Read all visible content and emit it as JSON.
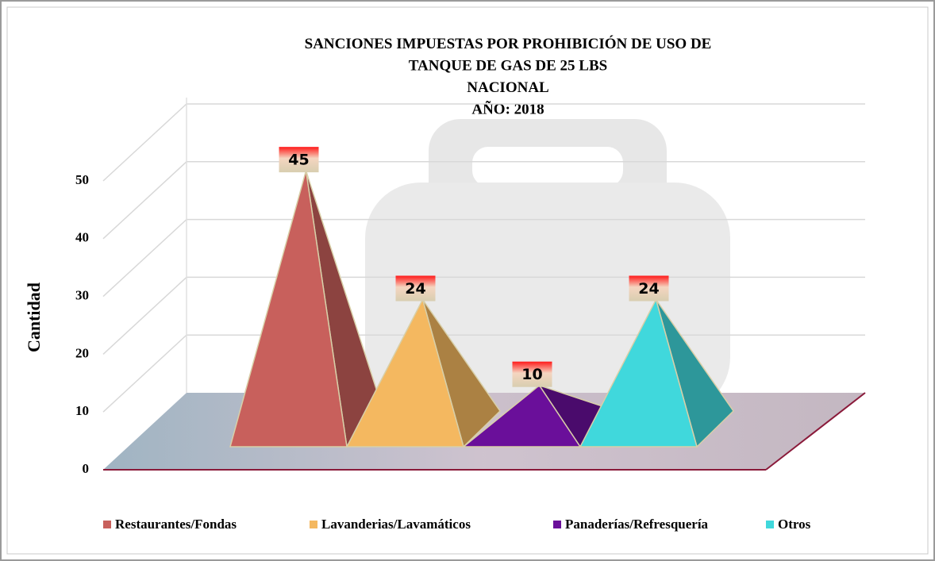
{
  "chart_data": {
    "type": "pyramid",
    "title": [
      "SANCIONES IMPUESTAS POR PROHIBICIÓN DE USO DE",
      "TANQUE DE GAS DE 25 LBS",
      "NACIONAL",
      "AÑO: 2018"
    ],
    "y_label": "Cantidad",
    "categories": [
      "Restaurantes/Fondas",
      "Lavanderias/Lavamáticos",
      "Panaderías/Refresquería",
      "Otros"
    ],
    "values": [
      45,
      24,
      10,
      24
    ],
    "colors": [
      "#c8605c",
      "#f4b860",
      "#6a0f9a",
      "#40d8dc"
    ],
    "ylim": [
      0,
      50
    ],
    "yticks": [
      0,
      10,
      20,
      30,
      40,
      50
    ],
    "grid": true,
    "legend": "bottom"
  }
}
